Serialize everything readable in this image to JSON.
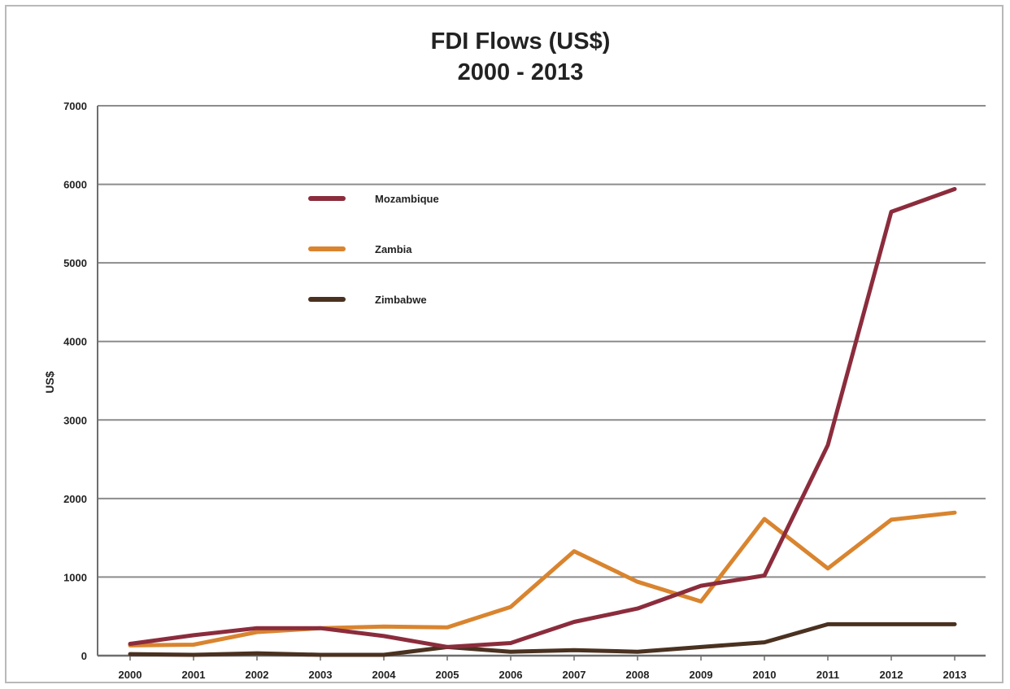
{
  "chart_data": {
    "type": "line",
    "title": [
      "FDI Flows (US$)",
      "2000 - 2013"
    ],
    "xlabel": "",
    "ylabel": "US$",
    "x": [
      "2000",
      "2001",
      "2002",
      "2003",
      "2004",
      "2005",
      "2006",
      "2007",
      "2008",
      "2009",
      "2010",
      "2011",
      "2012",
      "2013"
    ],
    "ylim": [
      0,
      7000
    ],
    "yticks": [
      "0",
      "1000",
      "2000",
      "3000",
      "4000",
      "5000",
      "6000",
      "7000"
    ],
    "grid": true,
    "legend_position": "upper-left",
    "series": [
      {
        "name": "Mozambique",
        "color": "#8b2c3c",
        "values": [
          150,
          260,
          350,
          350,
          250,
          110,
          160,
          430,
          600,
          890,
          1020,
          2680,
          5650,
          5940
        ]
      },
      {
        "name": "Zambia",
        "color": "#d9842f",
        "values": [
          130,
          140,
          300,
          350,
          370,
          360,
          620,
          1330,
          940,
          690,
          1740,
          1110,
          1730,
          1820
        ]
      },
      {
        "name": "Zimbabwe",
        "color": "#4a3120",
        "values": [
          20,
          10,
          30,
          10,
          10,
          110,
          50,
          70,
          50,
          110,
          170,
          400,
          400,
          400
        ]
      }
    ]
  }
}
